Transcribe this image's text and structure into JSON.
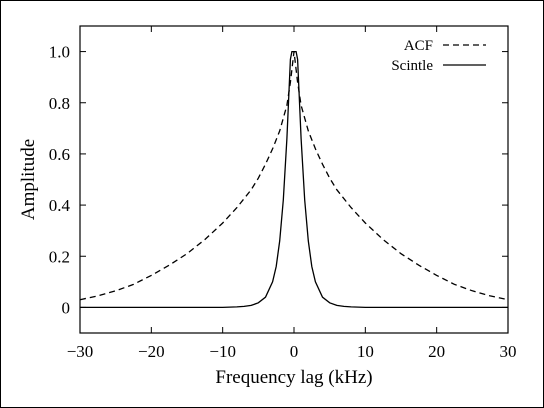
{
  "chart_data": {
    "type": "line",
    "title": "",
    "xlabel": "Frequency lag (kHz)",
    "ylabel": "Amplitude",
    "xlim": [
      -30,
      30
    ],
    "ylim": [
      -0.1,
      1.1
    ],
    "x_ticks": [
      -30,
      -20,
      -10,
      0,
      10,
      20,
      30
    ],
    "x_tick_labels": [
      "−30",
      "−20",
      "−10",
      "0",
      "10",
      "20",
      "30"
    ],
    "y_ticks": [
      0,
      0.2,
      0.4,
      0.6,
      0.8,
      1.0
    ],
    "y_tick_labels": [
      "0",
      "0.2",
      "0.4",
      "0.6",
      "0.8",
      "1.0"
    ],
    "grid": false,
    "legend_position": "top-right",
    "series": [
      {
        "name": "ACF",
        "style": "dashed",
        "color": "#000000",
        "x": [
          -30,
          -27.5,
          -25,
          -22.5,
          -20,
          -17.5,
          -15,
          -12.5,
          -10,
          -8,
          -6,
          -5,
          -4,
          -3,
          -2,
          -1,
          -0.5,
          0,
          0.5,
          1,
          2,
          3,
          4,
          5,
          6,
          8,
          10,
          12.5,
          15,
          17.5,
          20,
          22.5,
          25,
          27.5,
          30
        ],
        "y": [
          0.03,
          0.045,
          0.065,
          0.09,
          0.125,
          0.165,
          0.21,
          0.265,
          0.33,
          0.39,
          0.46,
          0.505,
          0.56,
          0.62,
          0.69,
          0.79,
          0.88,
          1.0,
          0.88,
          0.79,
          0.69,
          0.62,
          0.56,
          0.505,
          0.46,
          0.39,
          0.33,
          0.265,
          0.21,
          0.165,
          0.125,
          0.09,
          0.065,
          0.045,
          0.03
        ]
      },
      {
        "name": "Scintle",
        "style": "solid",
        "color": "#000000",
        "x": [
          -30,
          -10,
          -8,
          -7,
          -6,
          -5,
          -4,
          -3,
          -2.5,
          -2,
          -1.5,
          -1,
          -0.5,
          -0.3,
          0,
          0.3,
          0.5,
          1,
          1.5,
          2,
          2.5,
          3,
          4,
          5,
          6,
          7,
          8,
          10,
          30
        ],
        "y": [
          0.0,
          0.0,
          0.002,
          0.004,
          0.008,
          0.018,
          0.04,
          0.1,
          0.16,
          0.26,
          0.42,
          0.66,
          0.97,
          1.0,
          1.0,
          1.0,
          0.97,
          0.66,
          0.42,
          0.26,
          0.16,
          0.1,
          0.04,
          0.018,
          0.008,
          0.004,
          0.002,
          0.0,
          0.0
        ]
      }
    ]
  }
}
